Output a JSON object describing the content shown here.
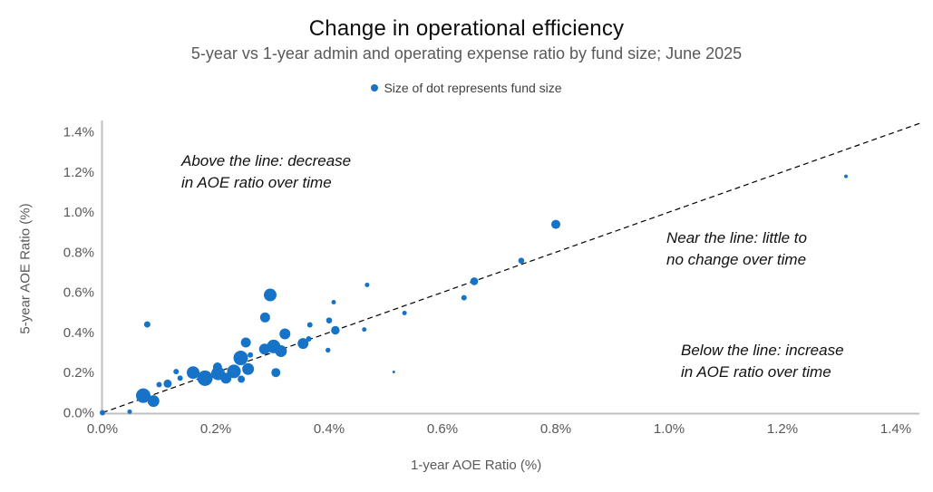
{
  "header": {
    "title": "Change in operational efficiency",
    "subtitle": "5-year vs 1-year admin and operating expense ratio by fund size; June 2025"
  },
  "legend": {
    "label": "Size of dot represents fund size"
  },
  "annotations": {
    "above": {
      "line1": "Above the line: decrease",
      "line2": "in AOE ratio over time"
    },
    "near": {
      "line1": "Near the line: little to",
      "line2": "no change over time"
    },
    "below": {
      "line1": "Below the line: increase",
      "line2": "in AOE ratio over time"
    }
  },
  "colors": {
    "dot": "#1673C8",
    "axis_line": "#BFBFBF",
    "tick_label": "#595959",
    "diagonal_line": "#000000"
  },
  "chart_data": {
    "type": "scatter",
    "title": "Change in operational efficiency",
    "subtitle": "5-year vs 1-year admin and operating expense ratio by fund size; June 2025",
    "xlabel": "1-year AOE Ratio (%)",
    "ylabel": "5-year AOE Ratio (%)",
    "xlim": [
      0,
      1.4
    ],
    "ylim": [
      0,
      1.4
    ],
    "x_ticks": [
      0,
      0.2,
      0.4,
      0.6,
      0.8,
      1.0,
      1.2,
      1.4
    ],
    "x_tick_labels": [
      "0.0%",
      "0.2%",
      "0.4%",
      "0.6%",
      "0.8%",
      "1.0%",
      "1.2%",
      "1.4%"
    ],
    "y_ticks": [
      0,
      0.2,
      0.4,
      0.6,
      0.8,
      1.0,
      1.2,
      1.4
    ],
    "y_tick_labels": [
      "0.0%",
      "0.2%",
      "0.4%",
      "0.6%",
      "0.8%",
      "1.0%",
      "1.2%",
      "1.4%"
    ],
    "grid": false,
    "legend_position": "top-center",
    "diagonal_reference_line": "y = x, dashed black, drawn from origin past (1.4, 1.4)",
    "size_note": "size = marker radius in px; dot size represents fund size",
    "points": [
      {
        "x": 0.0,
        "y": 0.0,
        "size": 3
      },
      {
        "x": 0.048,
        "y": 0.005,
        "size": 2.5
      },
      {
        "x": 0.079,
        "y": 0.44,
        "size": 3.5
      },
      {
        "x": 0.072,
        "y": 0.085,
        "size": 8
      },
      {
        "x": 0.09,
        "y": 0.058,
        "size": 6.5
      },
      {
        "x": 0.1,
        "y": 0.14,
        "size": 3
      },
      {
        "x": 0.115,
        "y": 0.145,
        "size": 4.5
      },
      {
        "x": 0.13,
        "y": 0.205,
        "size": 3
      },
      {
        "x": 0.137,
        "y": 0.172,
        "size": 3
      },
      {
        "x": 0.16,
        "y": 0.2,
        "size": 7
      },
      {
        "x": 0.181,
        "y": 0.172,
        "size": 8.5
      },
      {
        "x": 0.203,
        "y": 0.228,
        "size": 5
      },
      {
        "x": 0.204,
        "y": 0.196,
        "size": 7.5
      },
      {
        "x": 0.218,
        "y": 0.172,
        "size": 6
      },
      {
        "x": 0.232,
        "y": 0.206,
        "size": 7.5
      },
      {
        "x": 0.245,
        "y": 0.167,
        "size": 4
      },
      {
        "x": 0.244,
        "y": 0.273,
        "size": 8
      },
      {
        "x": 0.253,
        "y": 0.35,
        "size": 5.5
      },
      {
        "x": 0.261,
        "y": 0.288,
        "size": 3
      },
      {
        "x": 0.257,
        "y": 0.218,
        "size": 6.5
      },
      {
        "x": 0.286,
        "y": 0.317,
        "size": 6
      },
      {
        "x": 0.302,
        "y": 0.33,
        "size": 7.5
      },
      {
        "x": 0.315,
        "y": 0.307,
        "size": 6.5
      },
      {
        "x": 0.306,
        "y": 0.2,
        "size": 5
      },
      {
        "x": 0.296,
        "y": 0.587,
        "size": 7
      },
      {
        "x": 0.287,
        "y": 0.475,
        "size": 5.5
      },
      {
        "x": 0.322,
        "y": 0.393,
        "size": 6
      },
      {
        "x": 0.354,
        "y": 0.345,
        "size": 6
      },
      {
        "x": 0.364,
        "y": 0.368,
        "size": 3
      },
      {
        "x": 0.366,
        "y": 0.438,
        "size": 3
      },
      {
        "x": 0.398,
        "y": 0.312,
        "size": 2.7
      },
      {
        "x": 0.4,
        "y": 0.46,
        "size": 3.3
      },
      {
        "x": 0.408,
        "y": 0.551,
        "size": 2.5
      },
      {
        "x": 0.411,
        "y": 0.411,
        "size": 4.7
      },
      {
        "x": 0.462,
        "y": 0.415,
        "size": 2.5
      },
      {
        "x": 0.467,
        "y": 0.637,
        "size": 2.5
      },
      {
        "x": 0.514,
        "y": 0.203,
        "size": 1.5
      },
      {
        "x": 0.533,
        "y": 0.497,
        "size": 2.5
      },
      {
        "x": 0.638,
        "y": 0.573,
        "size": 3
      },
      {
        "x": 0.656,
        "y": 0.655,
        "size": 4.3
      },
      {
        "x": 0.739,
        "y": 0.758,
        "size": 3.3
      },
      {
        "x": 0.8,
        "y": 0.939,
        "size": 5
      },
      {
        "x": 1.312,
        "y": 1.178,
        "size": 2
      }
    ]
  }
}
